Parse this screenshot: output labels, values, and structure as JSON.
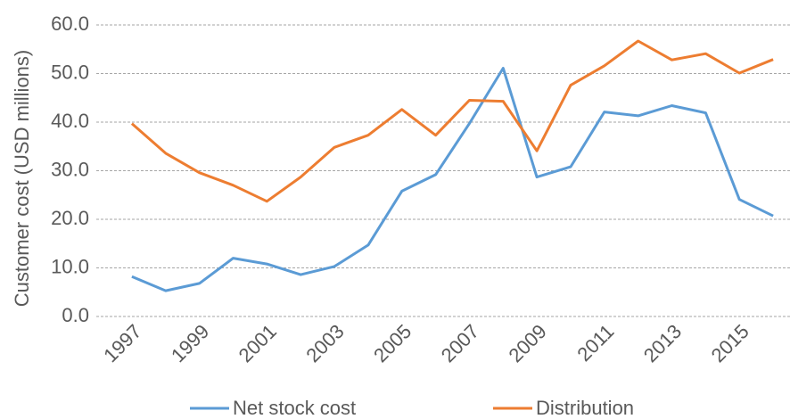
{
  "chart_data": {
    "type": "line",
    "y_label": "Customer cost (USD millions)",
    "categories": [
      "1997",
      null,
      "1999",
      null,
      "2001",
      null,
      "2003",
      null,
      "2005",
      null,
      "2007",
      null,
      "2009",
      null,
      "2011",
      null,
      "2013",
      null,
      "2015",
      null
    ],
    "series": [
      {
        "name": "Net stock cost",
        "color": "#5b9bd5",
        "values": [
          8.2,
          5.3,
          6.8,
          12.0,
          10.8,
          8.6,
          10.3,
          14.7,
          25.8,
          29.2,
          39.7,
          51.1,
          28.7,
          30.8,
          42.1,
          41.3,
          43.4,
          41.9,
          24.1,
          20.7
        ]
      },
      {
        "name": "Distribution",
        "color": "#ed7d31",
        "values": [
          39.7,
          33.6,
          29.6,
          27.0,
          23.7,
          28.7,
          34.8,
          37.3,
          42.6,
          37.3,
          44.5,
          44.3,
          34.1,
          47.6,
          51.6,
          56.7,
          52.8,
          54.1,
          50.1,
          52.9
        ]
      }
    ],
    "ylim": [
      0,
      60
    ],
    "yticks": [
      {
        "value": 0,
        "label": "0.0"
      },
      {
        "value": 10,
        "label": "10.0"
      },
      {
        "value": 20,
        "label": "20.0"
      },
      {
        "value": 30,
        "label": "30.0"
      },
      {
        "value": 40,
        "label": "40.0"
      },
      {
        "value": 50,
        "label": "50.0"
      },
      {
        "value": 60,
        "label": "60.0"
      }
    ],
    "grid": true,
    "legend": "bottom"
  }
}
